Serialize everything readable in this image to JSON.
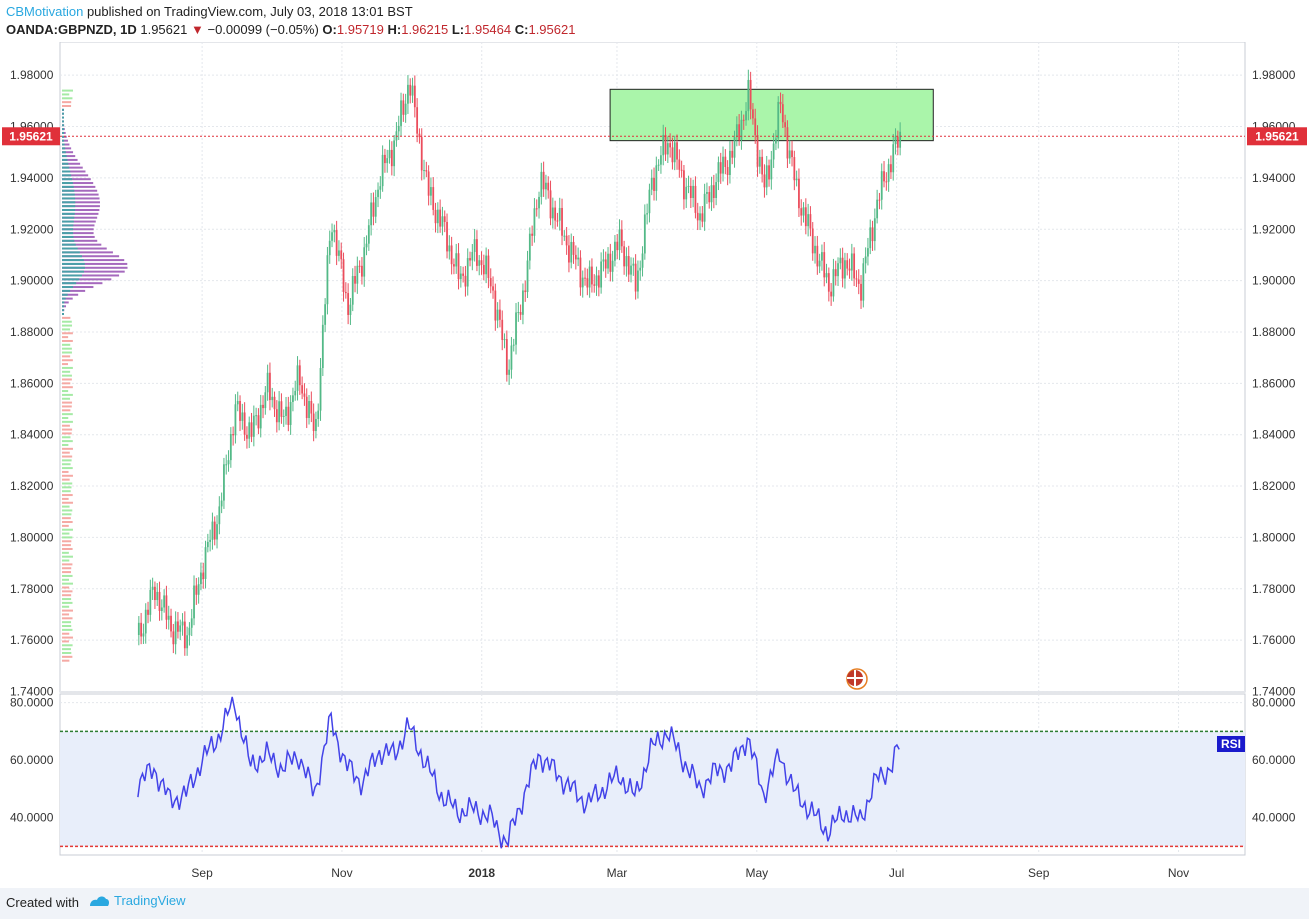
{
  "header": {
    "user": "CBMotivation",
    "published": "published on TradingView.com, July 03, 2018 13:01 BST",
    "symbol": "OANDA:GBPNZD, 1D",
    "last": "1.95621",
    "arrow": "▼",
    "change": "−0.00099 (−0.05%)",
    "o_label": "O:",
    "o_value": "1.95719",
    "h_label": "H:",
    "h_value": "1.96215",
    "l_label": "L:",
    "l_value": "1.95464",
    "c_label": "C:",
    "c_value": "1.95621"
  },
  "footer": {
    "created_with": "Created with",
    "brand": "TradingView"
  },
  "colors": {
    "up": "#53b987",
    "down": "#eb4d5c",
    "price_line": "#e0303a",
    "zone_fill": "#aaf5aa",
    "rsi_line": "#4343e8",
    "rsi_band": "#e8eefa",
    "profile_main": "#9b59b6",
    "profile_teal": "#4a9fa8",
    "profile_green": "#9be89b",
    "profile_red": "#f4a09a"
  },
  "chart_data": [
    {
      "type": "candlestick",
      "symbol": "OANDA:GBPNZD",
      "interval": "1D",
      "x_ticks": [
        "Sep",
        "Nov",
        "2018",
        "Mar",
        "May",
        "Jul",
        "Sep",
        "Nov"
      ],
      "y_ticks": [
        "1.74000",
        "1.76000",
        "1.78000",
        "1.80000",
        "1.82000",
        "1.84000",
        "1.86000",
        "1.88000",
        "1.90000",
        "1.92000",
        "1.94000",
        "1.96000",
        "1.98000"
      ],
      "ylim": [
        1.74,
        1.99
      ],
      "last_price_label": "1.95621",
      "last_price": 1.95621,
      "resistance_zone": {
        "low": 1.9545,
        "high": 1.9745,
        "from": "2018-02-26",
        "to": "2018-07-17"
      },
      "close_path": [
        {
          "date": "2017-08-04",
          "close": 1.762
        },
        {
          "date": "2017-08-11",
          "close": 1.78
        },
        {
          "date": "2017-08-18",
          "close": 1.765
        },
        {
          "date": "2017-08-25",
          "close": 1.762
        },
        {
          "date": "2017-09-01",
          "close": 1.79
        },
        {
          "date": "2017-09-08",
          "close": 1.81
        },
        {
          "date": "2017-09-15",
          "close": 1.85
        },
        {
          "date": "2017-09-22",
          "close": 1.84
        },
        {
          "date": "2017-09-29",
          "close": 1.858
        },
        {
          "date": "2017-10-06",
          "close": 1.845
        },
        {
          "date": "2017-10-13",
          "close": 1.862
        },
        {
          "date": "2017-10-20",
          "close": 1.84
        },
        {
          "date": "2017-10-27",
          "close": 1.925
        },
        {
          "date": "2017-11-03",
          "close": 1.89
        },
        {
          "date": "2017-11-10",
          "close": 1.91
        },
        {
          "date": "2017-11-17",
          "close": 1.94
        },
        {
          "date": "2017-11-24",
          "close": 1.955
        },
        {
          "date": "2017-11-30",
          "close": 1.978
        },
        {
          "date": "2017-12-08",
          "close": 1.935
        },
        {
          "date": "2017-12-15",
          "close": 1.92
        },
        {
          "date": "2017-12-22",
          "close": 1.9
        },
        {
          "date": "2017-12-29",
          "close": 1.912
        },
        {
          "date": "2018-01-05",
          "close": 1.898
        },
        {
          "date": "2018-01-12",
          "close": 1.866
        },
        {
          "date": "2018-01-19",
          "close": 1.897
        },
        {
          "date": "2018-01-26",
          "close": 1.94
        },
        {
          "date": "2018-02-02",
          "close": 1.925
        },
        {
          "date": "2018-02-09",
          "close": 1.91
        },
        {
          "date": "2018-02-16",
          "close": 1.898
        },
        {
          "date": "2018-02-23",
          "close": 1.905
        },
        {
          "date": "2018-03-02",
          "close": 1.915
        },
        {
          "date": "2018-03-09",
          "close": 1.898
        },
        {
          "date": "2018-03-16",
          "close": 1.94
        },
        {
          "date": "2018-03-23",
          "close": 1.955
        },
        {
          "date": "2018-03-30",
          "close": 1.938
        },
        {
          "date": "2018-04-06",
          "close": 1.925
        },
        {
          "date": "2018-04-13",
          "close": 1.94
        },
        {
          "date": "2018-04-20",
          "close": 1.95
        },
        {
          "date": "2018-04-27",
          "close": 1.972
        },
        {
          "date": "2018-05-04",
          "close": 1.935
        },
        {
          "date": "2018-05-11",
          "close": 1.968
        },
        {
          "date": "2018-05-18",
          "close": 1.935
        },
        {
          "date": "2018-05-25",
          "close": 1.915
        },
        {
          "date": "2018-06-01",
          "close": 1.898
        },
        {
          "date": "2018-06-08",
          "close": 1.908
        },
        {
          "date": "2018-06-15",
          "close": 1.898
        },
        {
          "date": "2018-06-22",
          "close": 1.93
        },
        {
          "date": "2018-06-29",
          "close": 1.95
        },
        {
          "date": "2018-07-03",
          "close": 1.95621
        }
      ]
    },
    {
      "type": "line",
      "name": "RSI",
      "y_ticks": [
        "40.0000",
        "60.0000",
        "80.0000"
      ],
      "ylim": [
        27,
        83
      ],
      "band": [
        30,
        70
      ],
      "values": [
        {
          "date": "2017-08-04",
          "value": 52
        },
        {
          "date": "2017-08-11",
          "value": 57
        },
        {
          "date": "2017-08-18",
          "value": 46
        },
        {
          "date": "2017-08-25",
          "value": 48
        },
        {
          "date": "2017-09-01",
          "value": 60
        },
        {
          "date": "2017-09-08",
          "value": 68
        },
        {
          "date": "2017-09-15",
          "value": 81
        },
        {
          "date": "2017-09-22",
          "value": 58
        },
        {
          "date": "2017-09-29",
          "value": 62
        },
        {
          "date": "2017-10-06",
          "value": 57
        },
        {
          "date": "2017-10-13",
          "value": 62
        },
        {
          "date": "2017-10-20",
          "value": 48
        },
        {
          "date": "2017-10-27",
          "value": 74
        },
        {
          "date": "2017-11-03",
          "value": 58
        },
        {
          "date": "2017-11-10",
          "value": 52
        },
        {
          "date": "2017-11-17",
          "value": 63
        },
        {
          "date": "2017-11-24",
          "value": 62
        },
        {
          "date": "2017-11-30",
          "value": 72
        },
        {
          "date": "2017-12-08",
          "value": 58
        },
        {
          "date": "2017-12-15",
          "value": 47
        },
        {
          "date": "2017-12-22",
          "value": 42
        },
        {
          "date": "2017-12-29",
          "value": 43
        },
        {
          "date": "2018-01-05",
          "value": 40
        },
        {
          "date": "2018-01-12",
          "value": 31
        },
        {
          "date": "2018-01-19",
          "value": 47
        },
        {
          "date": "2018-01-26",
          "value": 62
        },
        {
          "date": "2018-02-02",
          "value": 56
        },
        {
          "date": "2018-02-09",
          "value": 50
        },
        {
          "date": "2018-02-16",
          "value": 45
        },
        {
          "date": "2018-02-23",
          "value": 50
        },
        {
          "date": "2018-03-02",
          "value": 55
        },
        {
          "date": "2018-03-09",
          "value": 47
        },
        {
          "date": "2018-03-16",
          "value": 64
        },
        {
          "date": "2018-03-23",
          "value": 70
        },
        {
          "date": "2018-03-30",
          "value": 60
        },
        {
          "date": "2018-04-06",
          "value": 50
        },
        {
          "date": "2018-04-13",
          "value": 56
        },
        {
          "date": "2018-04-20",
          "value": 58
        },
        {
          "date": "2018-04-27",
          "value": 68
        },
        {
          "date": "2018-05-04",
          "value": 48
        },
        {
          "date": "2018-05-11",
          "value": 62
        },
        {
          "date": "2018-05-18",
          "value": 48
        },
        {
          "date": "2018-05-25",
          "value": 42
        },
        {
          "date": "2018-06-01",
          "value": 35
        },
        {
          "date": "2018-06-08",
          "value": 42
        },
        {
          "date": "2018-06-15",
          "value": 39
        },
        {
          "date": "2018-06-22",
          "value": 53
        },
        {
          "date": "2018-06-29",
          "value": 58
        },
        {
          "date": "2018-07-03",
          "value": 67
        }
      ],
      "label": "RSI"
    }
  ]
}
